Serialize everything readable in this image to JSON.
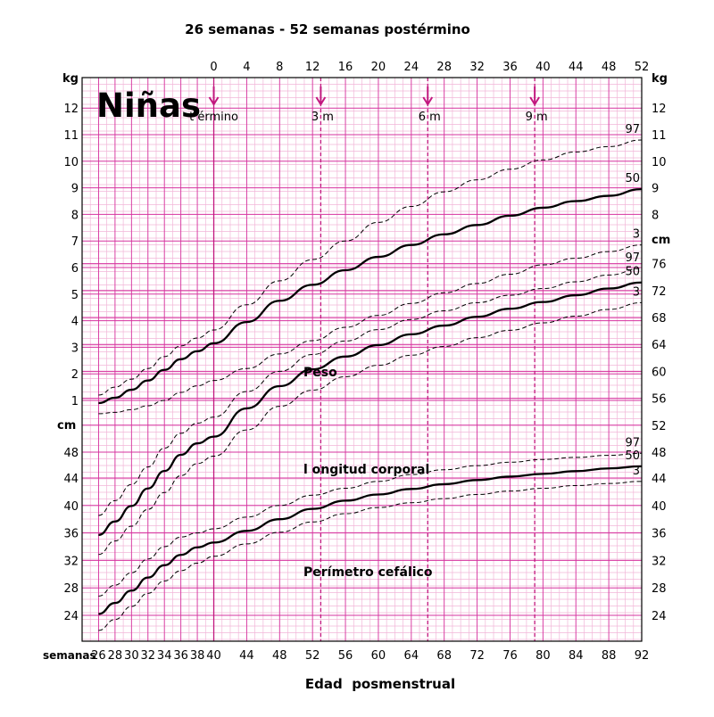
{
  "chart_data": {
    "type": "line",
    "title": "Niñas",
    "top_title": "26 semanas - 52 semanas postérmino",
    "xlabel": "Edad  posmenstrual",
    "x_axis_label": "semanas",
    "x_range": [
      24,
      92
    ],
    "x_ticks": [
      "26",
      "28",
      "30",
      "32",
      "34",
      "36",
      "38",
      "40",
      "44",
      "48",
      "52",
      "56",
      "60",
      "64",
      "68",
      "72",
      "76",
      "80",
      "84",
      "88",
      "92"
    ],
    "top_axis_ticks": [
      "0",
      "4",
      "8",
      "12",
      "16",
      "20",
      "24",
      "28",
      "32",
      "36",
      "40",
      "44",
      "48",
      "52"
    ],
    "grid": true,
    "markers": [
      {
        "label": "t érmino",
        "week": 40
      },
      {
        "label": "3 m",
        "week": 53
      },
      {
        "label": "6 m",
        "week": 66
      },
      {
        "label": "9 m",
        "week": 79
      }
    ],
    "weight_axis": {
      "unit": "kg",
      "range": [
        0,
        12.3
      ],
      "ticks": [
        "1",
        "2",
        "3",
        "4",
        "5",
        "6",
        "7",
        "8",
        "9",
        "10",
        "11",
        "12"
      ]
    },
    "length_axis": {
      "unit": "cm",
      "range": [
        48,
        78
      ],
      "ticks": [
        "48",
        "52",
        "56",
        "60",
        "64",
        "68",
        "72",
        "76"
      ]
    },
    "head_axis": {
      "unit": "cm",
      "range": [
        20,
        44
      ],
      "ticks": [
        "24",
        "28",
        "32",
        "36",
        "40",
        "44"
      ]
    },
    "labels": {
      "weight": "Peso",
      "length": "l ongitud corporal",
      "head": "Perímetro cefálico",
      "p97": "97",
      "p50": "50",
      "p3": "3"
    },
    "series": [
      {
        "group": "weight",
        "percentile": "97",
        "x": [
          26,
          28,
          30,
          32,
          34,
          36,
          38,
          40,
          44,
          48,
          52,
          56,
          60,
          64,
          68,
          72,
          76,
          80,
          84,
          88,
          92
        ],
        "y": [
          1.2,
          1.5,
          1.8,
          2.2,
          2.65,
          3.05,
          3.35,
          3.65,
          4.6,
          5.5,
          6.3,
          7.0,
          7.7,
          8.3,
          8.85,
          9.3,
          9.7,
          10.05,
          10.35,
          10.55,
          10.8
        ]
      },
      {
        "group": "weight",
        "percentile": "50",
        "x": [
          26,
          28,
          30,
          32,
          34,
          36,
          38,
          40,
          44,
          48,
          52,
          56,
          60,
          64,
          68,
          72,
          76,
          80,
          84,
          88,
          92
        ],
        "y": [
          0.9,
          1.1,
          1.4,
          1.75,
          2.15,
          2.55,
          2.85,
          3.15,
          3.95,
          4.75,
          5.35,
          5.9,
          6.4,
          6.85,
          7.25,
          7.6,
          7.95,
          8.25,
          8.5,
          8.7,
          8.95
        ]
      },
      {
        "group": "weight",
        "percentile": "3",
        "x": [
          26,
          28,
          30,
          32,
          34,
          36,
          38,
          40,
          44,
          48,
          52,
          56,
          60,
          64,
          68,
          72,
          76,
          80,
          84,
          88,
          92
        ],
        "y": [
          0.5,
          0.55,
          0.65,
          0.8,
          1.0,
          1.3,
          1.55,
          1.75,
          2.2,
          2.75,
          3.25,
          3.75,
          4.2,
          4.65,
          5.05,
          5.4,
          5.75,
          6.1,
          6.35,
          6.6,
          6.85
        ]
      },
      {
        "group": "length",
        "percentile": "97",
        "x": [
          26,
          28,
          30,
          32,
          34,
          36,
          38,
          40,
          44,
          48,
          52,
          56,
          60,
          64,
          68,
          72,
          76,
          80,
          84,
          88,
          92
        ],
        "y": [
          38.6,
          40.8,
          43.2,
          45.8,
          48.6,
          50.8,
          52.3,
          53.2,
          57.0,
          60.0,
          62.5,
          64.5,
          66.2,
          67.7,
          69.0,
          70.2,
          71.3,
          72.3,
          73.3,
          74.3,
          75.3
        ]
      },
      {
        "group": "length",
        "percentile": "50",
        "x": [
          26,
          28,
          30,
          32,
          34,
          36,
          38,
          40,
          44,
          48,
          52,
          56,
          60,
          64,
          68,
          72,
          76,
          80,
          84,
          88,
          92
        ],
        "y": [
          35.7,
          37.7,
          40.0,
          42.6,
          45.2,
          47.6,
          49.3,
          50.3,
          54.5,
          57.8,
          60.3,
          62.2,
          63.9,
          65.5,
          66.8,
          68.1,
          69.3,
          70.3,
          71.3,
          72.3,
          73.2
        ]
      },
      {
        "group": "length",
        "percentile": "3",
        "x": [
          26,
          28,
          30,
          32,
          34,
          36,
          38,
          40,
          44,
          48,
          52,
          56,
          60,
          64,
          68,
          72,
          76,
          80,
          84,
          88,
          92
        ],
        "y": [
          32.8,
          34.8,
          37.0,
          39.5,
          42.0,
          44.5,
          46.3,
          47.4,
          51.3,
          54.8,
          57.2,
          59.2,
          60.9,
          62.4,
          63.7,
          65.0,
          66.1,
          67.2,
          68.2,
          69.2,
          70.2
        ]
      },
      {
        "group": "head",
        "percentile": "97",
        "x": [
          26,
          28,
          30,
          32,
          34,
          36,
          38,
          40,
          44,
          48,
          52,
          56,
          60,
          64,
          68,
          72,
          76,
          80,
          84,
          88,
          92
        ],
        "y": [
          26.8,
          28.4,
          30.2,
          32.2,
          34.0,
          35.4,
          36.0,
          36.6,
          38.3,
          40.0,
          41.5,
          42.5,
          43.5,
          44.5,
          45.2,
          45.8,
          46.3,
          46.7,
          47.0,
          47.3,
          47.6
        ]
      },
      {
        "group": "head",
        "percentile": "50",
        "x": [
          26,
          28,
          30,
          32,
          34,
          36,
          38,
          40,
          44,
          48,
          52,
          56,
          60,
          64,
          68,
          72,
          76,
          80,
          84,
          88,
          92
        ],
        "y": [
          24.2,
          25.8,
          27.6,
          29.5,
          31.3,
          32.8,
          33.9,
          34.6,
          36.3,
          38.0,
          39.5,
          40.7,
          41.6,
          42.4,
          43.1,
          43.7,
          44.2,
          44.6,
          45.0,
          45.4,
          45.7
        ]
      },
      {
        "group": "head",
        "percentile": "3",
        "x": [
          26,
          28,
          30,
          32,
          34,
          36,
          38,
          40,
          44,
          48,
          52,
          56,
          60,
          64,
          68,
          72,
          76,
          80,
          84,
          88,
          92
        ],
        "y": [
          21.8,
          23.4,
          25.3,
          27.2,
          29.0,
          30.5,
          31.6,
          32.6,
          34.4,
          36.1,
          37.6,
          38.8,
          39.7,
          40.4,
          41.0,
          41.6,
          42.1,
          42.5,
          42.9,
          43.2,
          43.5
        ]
      }
    ]
  },
  "colors": {
    "grid_minor": "#f2b6d8",
    "grid_major": "#d6339f",
    "marker": "#c2187f",
    "line": "#000000"
  }
}
